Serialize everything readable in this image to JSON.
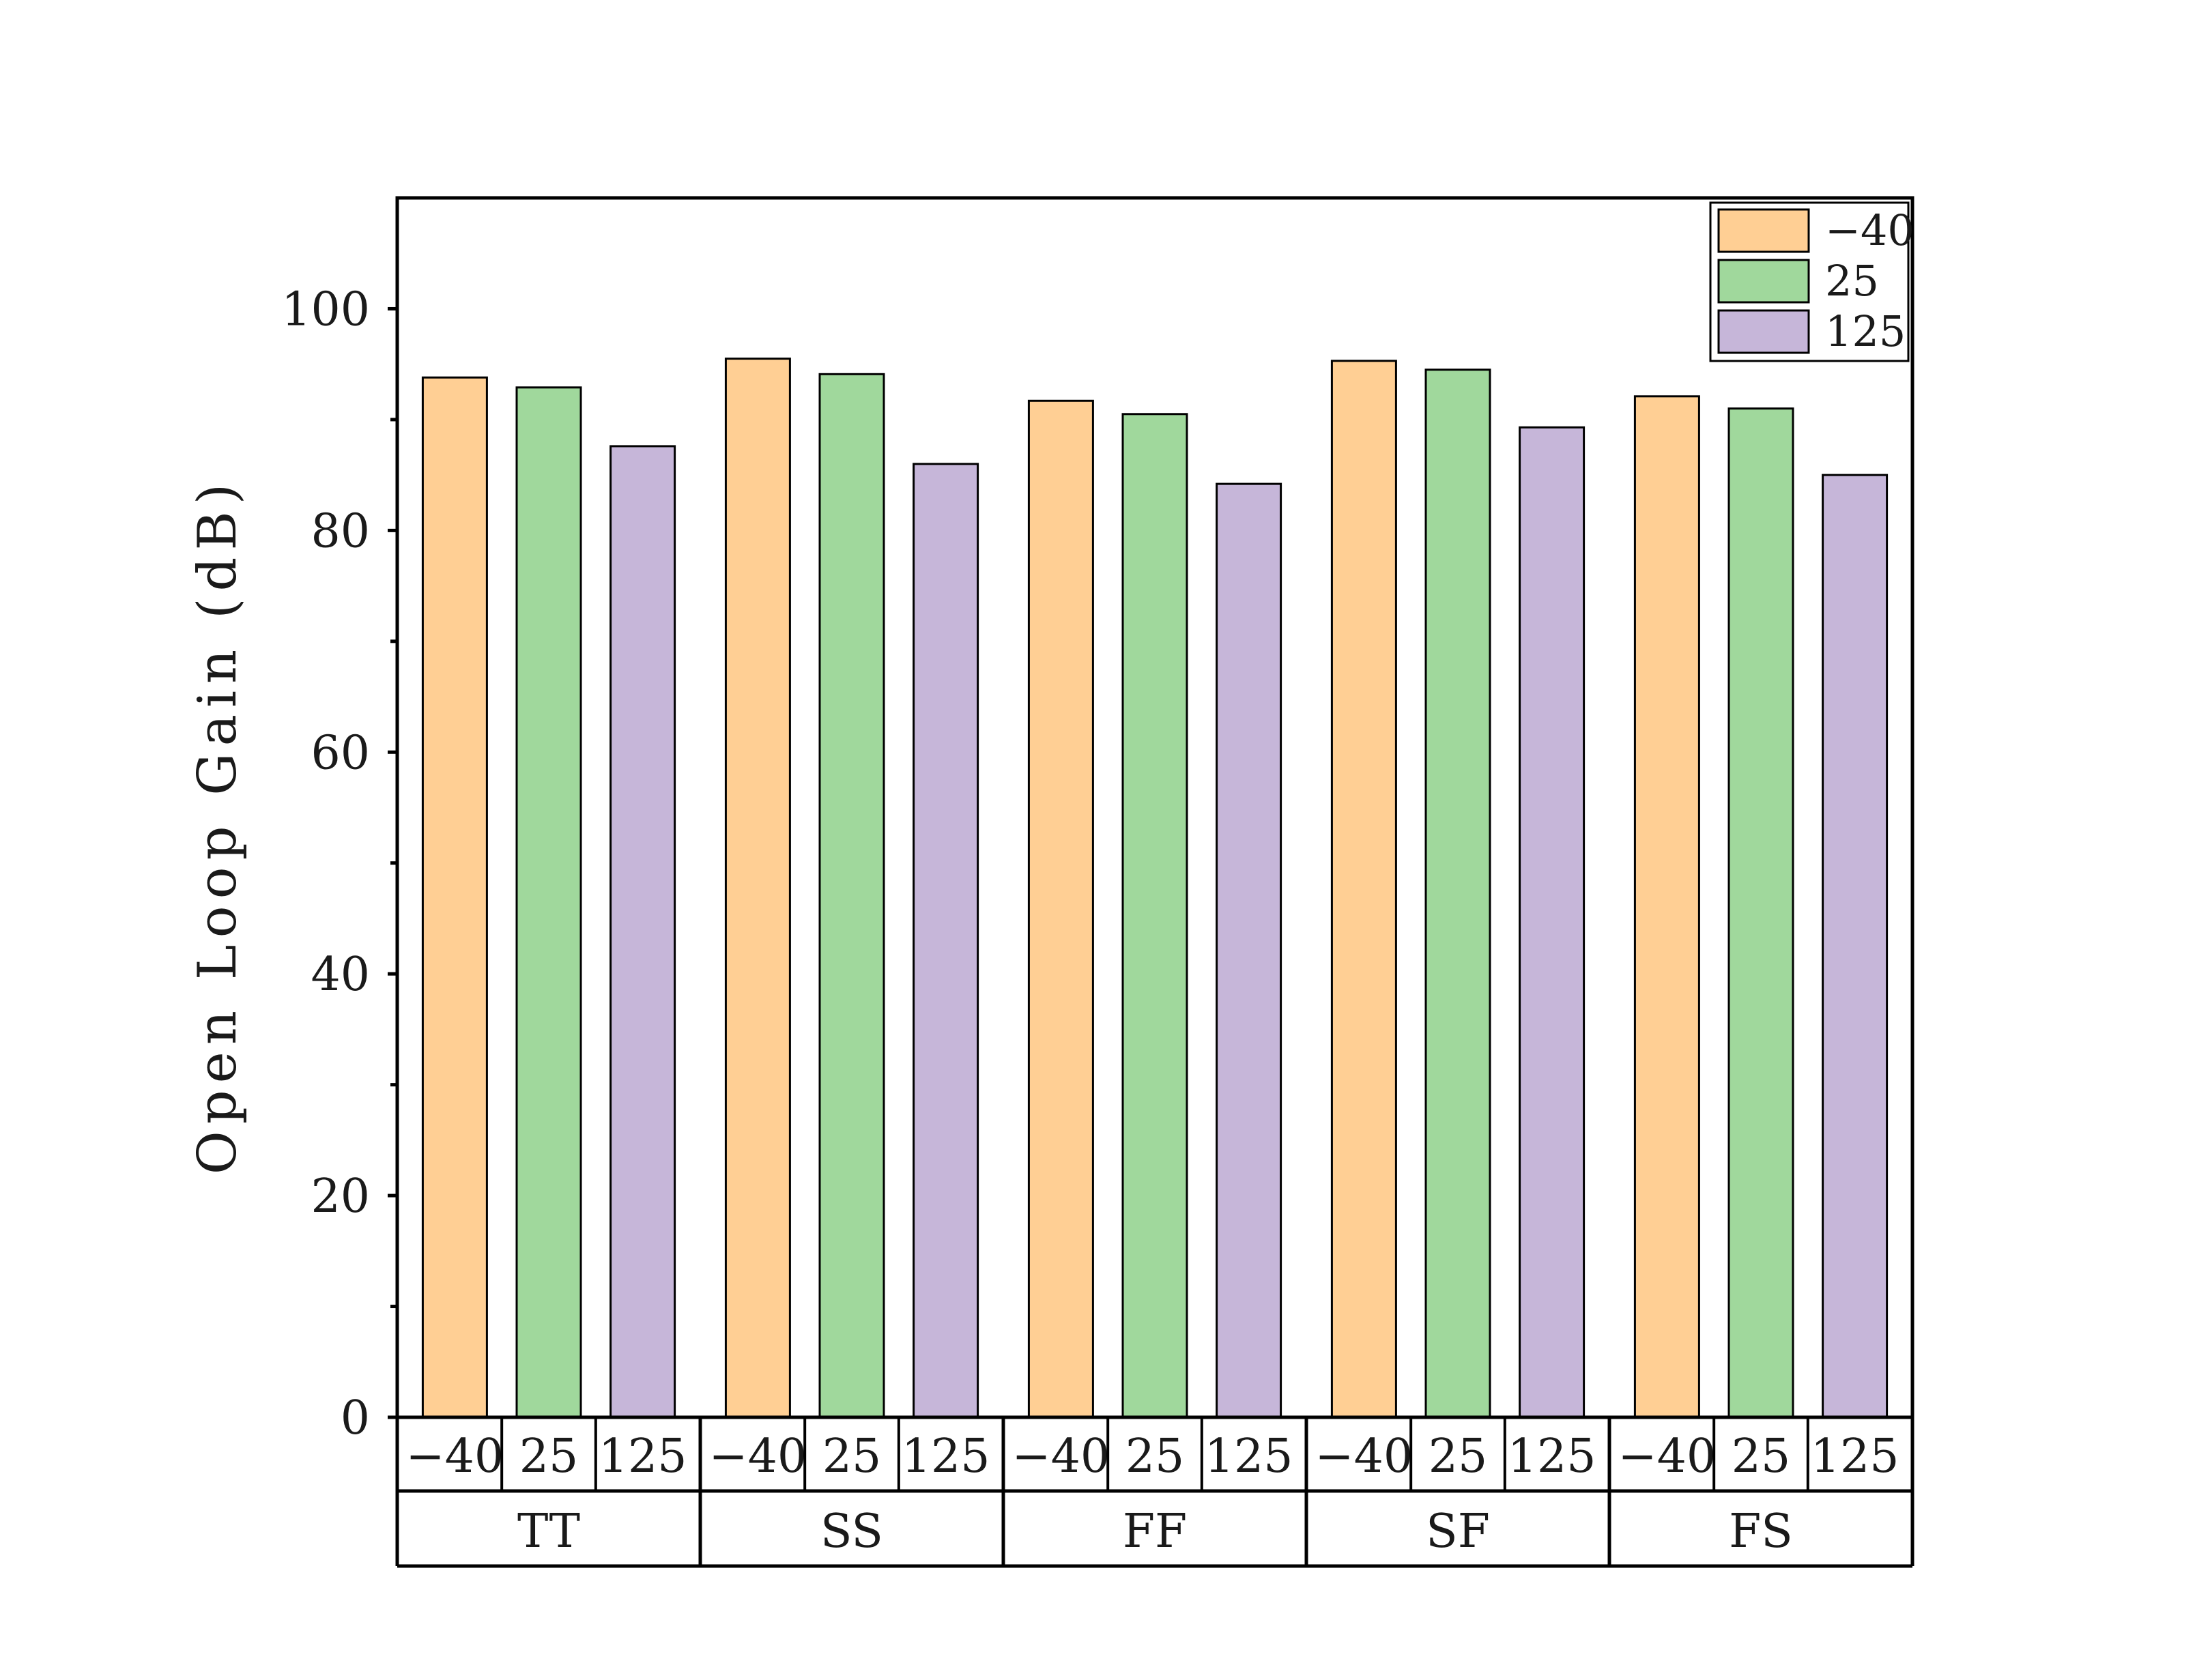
{
  "chart_data": {
    "type": "bar",
    "title": "",
    "ylabel": "Open Loop Gain (dB)",
    "xlabel": "",
    "ylim": [
      0,
      110
    ],
    "yticks": [
      0,
      20,
      40,
      60,
      80,
      100
    ],
    "categories": [
      "TT",
      "SS",
      "FF",
      "SF",
      "FS"
    ],
    "sub_categories": [
      "−40",
      "25",
      "125"
    ],
    "series": [
      {
        "name": "−40",
        "color": "#FFCF94",
        "values": [
          93.8,
          95.5,
          91.7,
          95.3,
          92.1
        ]
      },
      {
        "name": "25",
        "color": "#A0D89C",
        "values": [
          92.9,
          94.1,
          90.5,
          94.5,
          91.0
        ]
      },
      {
        "name": "125",
        "color": "#C6B6D9",
        "values": [
          87.6,
          86.0,
          84.2,
          89.3,
          85.0
        ]
      }
    ],
    "legend": {
      "position": "top-right"
    },
    "grid": false
  }
}
